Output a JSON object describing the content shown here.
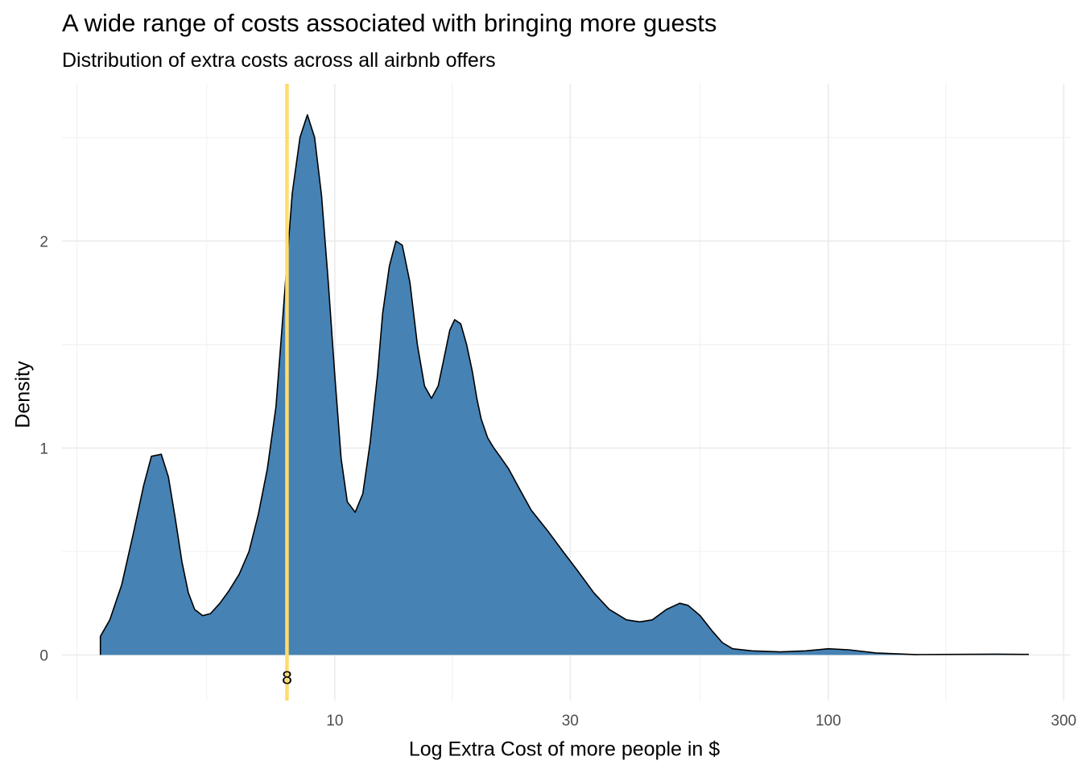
{
  "chart_data": {
    "type": "area",
    "title": "A wide range of costs associated with bringing more guests",
    "subtitle": "Distribution of extra costs across all airbnb offers",
    "xlabel": "Log Extra Cost of more people in $",
    "ylabel": "Density",
    "x_scale": "log10",
    "xlim": [
      2.8,
      310
    ],
    "ylim": [
      -0.22,
      2.76
    ],
    "x_ticks": [
      10,
      30,
      100,
      300
    ],
    "x_tick_labels": [
      "10",
      "30",
      "100",
      "300"
    ],
    "x_minor_ticks": [
      3,
      5.5,
      17.3,
      55,
      173
    ],
    "y_ticks": [
      0,
      1,
      2
    ],
    "y_tick_labels": [
      "0",
      "1",
      "2"
    ],
    "y_minor_ticks": [
      0.5,
      1.5,
      2.5
    ],
    "grid": true,
    "fill_color": "#4682B4",
    "line_color": "#000000",
    "reference_line": {
      "x": 8,
      "label": "8",
      "color": "#FFDB6D"
    },
    "series": [
      {
        "x": [
          3.35,
          3.5,
          3.7,
          3.9,
          4.1,
          4.25,
          4.45,
          4.6,
          4.75,
          4.9,
          5.05,
          5.2,
          5.4,
          5.6,
          5.85,
          6.1,
          6.4,
          6.7,
          7.0,
          7.3,
          7.6,
          7.8,
          8.0,
          8.2,
          8.5,
          8.8,
          9.1,
          9.4,
          9.7,
          10.0,
          10.3,
          10.6,
          11.0,
          11.4,
          11.8,
          12.2,
          12.5,
          12.9,
          13.3,
          13.7,
          14.2,
          14.7,
          15.2,
          15.7,
          16.2,
          16.7,
          17.1,
          17.5,
          18.0,
          18.5,
          19.0,
          19.4,
          19.8,
          20.4,
          21.0,
          21.6,
          22.5,
          23.7,
          25.0,
          27.0,
          29.0,
          31.0,
          33.5,
          36.0,
          39.0,
          41.5,
          44.0,
          47.0,
          50.0,
          52.0,
          55.0,
          58.0,
          61.0,
          64.0,
          70.0,
          80.0,
          90.0,
          100.0,
          110.0,
          125.0,
          150.0,
          180.0,
          220.0,
          255.0
        ],
        "y": [
          0.09,
          0.17,
          0.34,
          0.58,
          0.82,
          0.96,
          0.97,
          0.86,
          0.66,
          0.45,
          0.3,
          0.22,
          0.19,
          0.2,
          0.25,
          0.31,
          0.39,
          0.5,
          0.68,
          0.9,
          1.2,
          1.55,
          1.9,
          2.23,
          2.5,
          2.61,
          2.5,
          2.22,
          1.8,
          1.35,
          0.95,
          0.74,
          0.69,
          0.78,
          1.03,
          1.35,
          1.65,
          1.88,
          2.0,
          1.98,
          1.8,
          1.5,
          1.3,
          1.24,
          1.3,
          1.45,
          1.57,
          1.62,
          1.6,
          1.5,
          1.37,
          1.24,
          1.14,
          1.05,
          1.0,
          0.96,
          0.9,
          0.8,
          0.7,
          0.6,
          0.5,
          0.41,
          0.3,
          0.22,
          0.17,
          0.16,
          0.17,
          0.22,
          0.25,
          0.24,
          0.19,
          0.12,
          0.06,
          0.03,
          0.02,
          0.015,
          0.02,
          0.03,
          0.025,
          0.01,
          0.002,
          0.003,
          0.004,
          0.003
        ]
      }
    ]
  }
}
